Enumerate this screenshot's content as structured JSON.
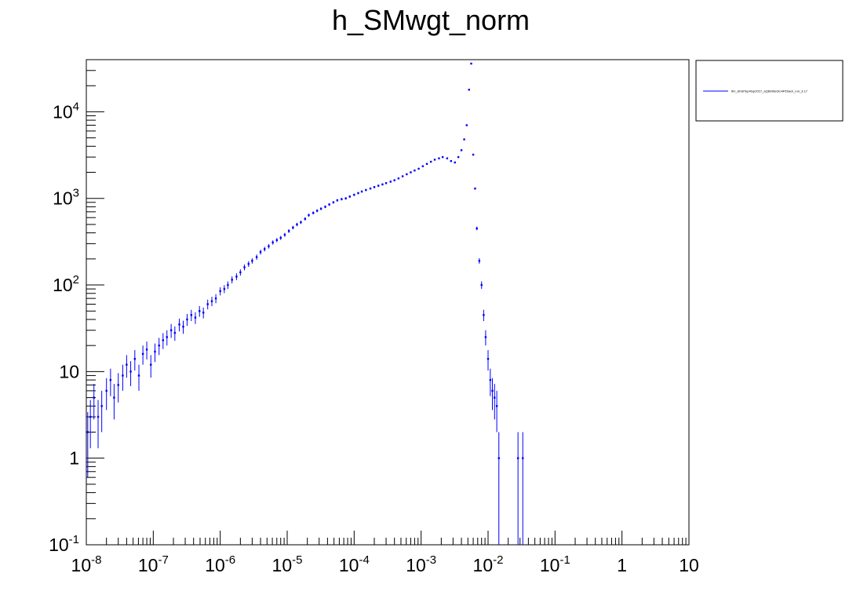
{
  "chart_data": {
    "type": "scatter",
    "title": "h_SMwgt_norm",
    "xlabel": "",
    "ylabel": "",
    "x_scale": "log",
    "y_scale": "log",
    "xlim": [
      1e-08,
      10
    ],
    "ylim": [
      0.1,
      40000
    ],
    "grid": false,
    "legend_position": "top-right, outside plot",
    "marker_color": "#0000ff",
    "x_tick_labels": [
      {
        "base": "10",
        "exp": "-8"
      },
      {
        "base": "10",
        "exp": "-7"
      },
      {
        "base": "10",
        "exp": "-6"
      },
      {
        "base": "10",
        "exp": "-5"
      },
      {
        "base": "10",
        "exp": "-4"
      },
      {
        "base": "10",
        "exp": "-3"
      },
      {
        "base": "10",
        "exp": "-2"
      },
      {
        "base": "10",
        "exp": "-1"
      },
      {
        "base": "1",
        "exp": ""
      },
      {
        "base": "10",
        "exp": ""
      }
    ],
    "y_tick_labels": [
      {
        "base": "10",
        "exp": "-1"
      },
      {
        "base": "1",
        "exp": ""
      },
      {
        "base": "10",
        "exp": ""
      },
      {
        "base": "10",
        "exp": "2"
      },
      {
        "base": "10",
        "exp": "3"
      },
      {
        "base": "10",
        "exp": "4"
      }
    ],
    "series": [
      {
        "name": "ttH_dim6Top4top2017_aQEM0eGto4F5Sadr_run_3.17",
        "color": "#0000ff",
        "x": [
          1.05e-08,
          1.15e-08,
          1.3e-08,
          1.5e-08,
          1.7e-08,
          2e-08,
          2.3e-08,
          2.6e-08,
          3e-08,
          3.5e-08,
          4e-08,
          4.6e-08,
          5.3e-08,
          6.1e-08,
          7e-08,
          8e-08,
          9.2e-08,
          1.06e-07,
          1.22e-07,
          1.4e-07,
          1.6e-07,
          1.85e-07,
          2.1e-07,
          2.45e-07,
          2.8e-07,
          3.2e-07,
          3.7e-07,
          4.25e-07,
          4.9e-07,
          5.6e-07,
          6.5e-07,
          7.5e-07,
          8.6e-07,
          1e-06,
          1.15e-06,
          1.3e-06,
          1.5e-06,
          1.75e-06,
          2e-06,
          2.3e-06,
          2.65e-06,
          3e-06,
          3.5e-06,
          4e-06,
          4.6e-06,
          5.3e-06,
          6.1e-06,
          7e-06,
          8e-06,
          9.2e-06,
          1.06e-05,
          1.22e-05,
          1.4e-05,
          1.6e-05,
          1.85e-05,
          2.1e-05,
          2.45e-05,
          2.8e-05,
          3.2e-05,
          3.7e-05,
          4.25e-05,
          4.9e-05,
          5.6e-05,
          6.5e-05,
          7.5e-05,
          8.6e-05,
          0.0001,
          0.000115,
          0.00013,
          0.00015,
          0.000175,
          0.0002,
          0.00023,
          0.000265,
          0.0003,
          0.00035,
          0.0004,
          0.00046,
          0.00053,
          0.00061,
          0.0007,
          0.0008,
          0.00092,
          0.00106,
          0.00122,
          0.0014,
          0.0016,
          0.00185,
          0.0021,
          0.00245,
          0.0028,
          0.0032,
          0.0036,
          0.004,
          0.0044,
          0.0048,
          0.0052,
          0.0056,
          0.006,
          0.0064,
          0.0068,
          0.0074,
          0.008,
          0.0086,
          0.0092,
          0.01,
          0.0108,
          0.0116,
          0.0125,
          0.0135,
          0.0145,
          0.028,
          0.033
        ],
        "y": [
          2,
          3,
          5,
          3,
          4,
          6,
          8,
          5,
          7,
          9,
          12,
          10,
          14,
          9,
          16,
          18,
          12,
          17,
          20,
          23,
          25,
          30,
          28,
          35,
          33,
          40,
          45,
          42,
          50,
          48,
          60,
          65,
          70,
          85,
          90,
          100,
          115,
          125,
          140,
          160,
          175,
          190,
          210,
          240,
          260,
          280,
          310,
          330,
          350,
          380,
          420,
          460,
          500,
          530,
          580,
          640,
          680,
          720,
          760,
          800,
          850,
          900,
          950,
          980,
          1000,
          1050,
          1100,
          1150,
          1200,
          1250,
          1300,
          1350,
          1400,
          1450,
          1500,
          1560,
          1620,
          1700,
          1800,
          1900,
          2000,
          2100,
          2200,
          2350,
          2500,
          2650,
          2800,
          2900,
          3000,
          2900,
          2700,
          2600,
          3000,
          3600,
          4800,
          7000,
          18000,
          36000,
          3200,
          1300,
          450,
          190,
          100,
          45,
          25,
          14,
          8,
          6,
          5,
          4,
          1,
          1,
          1
        ],
        "yerr": [
          1.4,
          1.7,
          2.2,
          1.7,
          2,
          2.4,
          2.8,
          2.2,
          2.6,
          3,
          3.5,
          3.2,
          3.7,
          3,
          4,
          4.2,
          3.5,
          4.1,
          4.5,
          4.8,
          5,
          5.5,
          5.3,
          5.9,
          5.7,
          6.3,
          6.7,
          6.5,
          7.1,
          6.9,
          7.7,
          8.1,
          8.4,
          9.2,
          9.5,
          10,
          10.7,
          11.2,
          11.8,
          12.6,
          13.2,
          13.8,
          14.5,
          15.5,
          16.1,
          16.7,
          17.6,
          18.2,
          18.7,
          19.5,
          20.5,
          21.4,
          22.4,
          23,
          24,
          25.3,
          26,
          26.8,
          27.6,
          28.3,
          29.2,
          30,
          30.8,
          31.3,
          31.6,
          32.4,
          33.2,
          33.9,
          34.6,
          35.4,
          36,
          36.7,
          37.4,
          38,
          38.7,
          39.5,
          40.2,
          41.2,
          42.4,
          43.6,
          44.7,
          45.8,
          46.9,
          48.5,
          50,
          51.5,
          52.9,
          53.9,
          54.8,
          53.9,
          52,
          51,
          54.8,
          60,
          69.3,
          83.7,
          134,
          190,
          56.6,
          36,
          21.2,
          13.8,
          10,
          6.7,
          5,
          3.7,
          2.8,
          2.4,
          2.2,
          2,
          1,
          1,
          1
        ]
      }
    ]
  }
}
